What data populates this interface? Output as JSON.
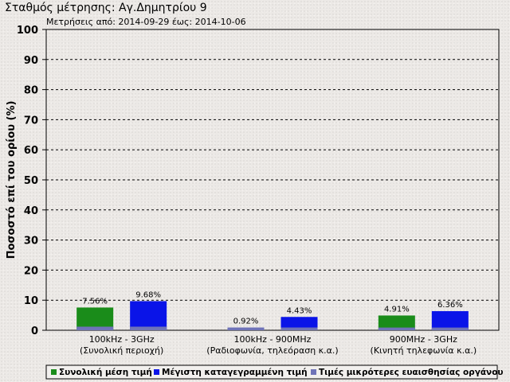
{
  "chart_data": {
    "type": "bar",
    "title": "Σταθμός μέτρησης: Αγ.Δημητρίου 9",
    "subtitle": "Μετρήσεις από: 2014-09-29 έως: 2014-10-06",
    "ylabel": "Ποσοστό επί του ορίου (%)",
    "xlabel": "",
    "ylim": [
      0,
      100
    ],
    "yticks": [
      0,
      10,
      20,
      30,
      40,
      50,
      60,
      70,
      80,
      90,
      100
    ],
    "grid": true,
    "legend_position": "bottom",
    "categories": [
      {
        "line1": "100kHz - 3GHz",
        "line2": "(Συνολική περιοχή)"
      },
      {
        "line1": "100kHz - 900MHz",
        "line2": "(Ραδιοφωνία, τηλεόραση κ.α.)"
      },
      {
        "line1": "900MHz - 3GHz",
        "line2": "(Κινητή τηλεφωνία κ.α.)"
      }
    ],
    "series": [
      {
        "name": "Συνολική μέση τιμή",
        "color": "#1a8c1a",
        "values": [
          7.56,
          null,
          4.91
        ],
        "labels": [
          "7.56%",
          "",
          "4.91%"
        ]
      },
      {
        "name": "Μέγιστη καταγεγραμμένη τιμή",
        "color": "#0a14e8",
        "values": [
          9.68,
          4.43,
          6.36
        ],
        "labels": [
          "9.68%",
          "4.43%",
          "6.36%"
        ]
      },
      {
        "name": "Τιμές μικρότερες ευαισθησίας οργάνου",
        "color": "#6f73b8",
        "values": [
          1.2,
          0.92,
          0.9
        ],
        "labels": [
          "",
          "0.92%",
          ""
        ]
      }
    ]
  }
}
